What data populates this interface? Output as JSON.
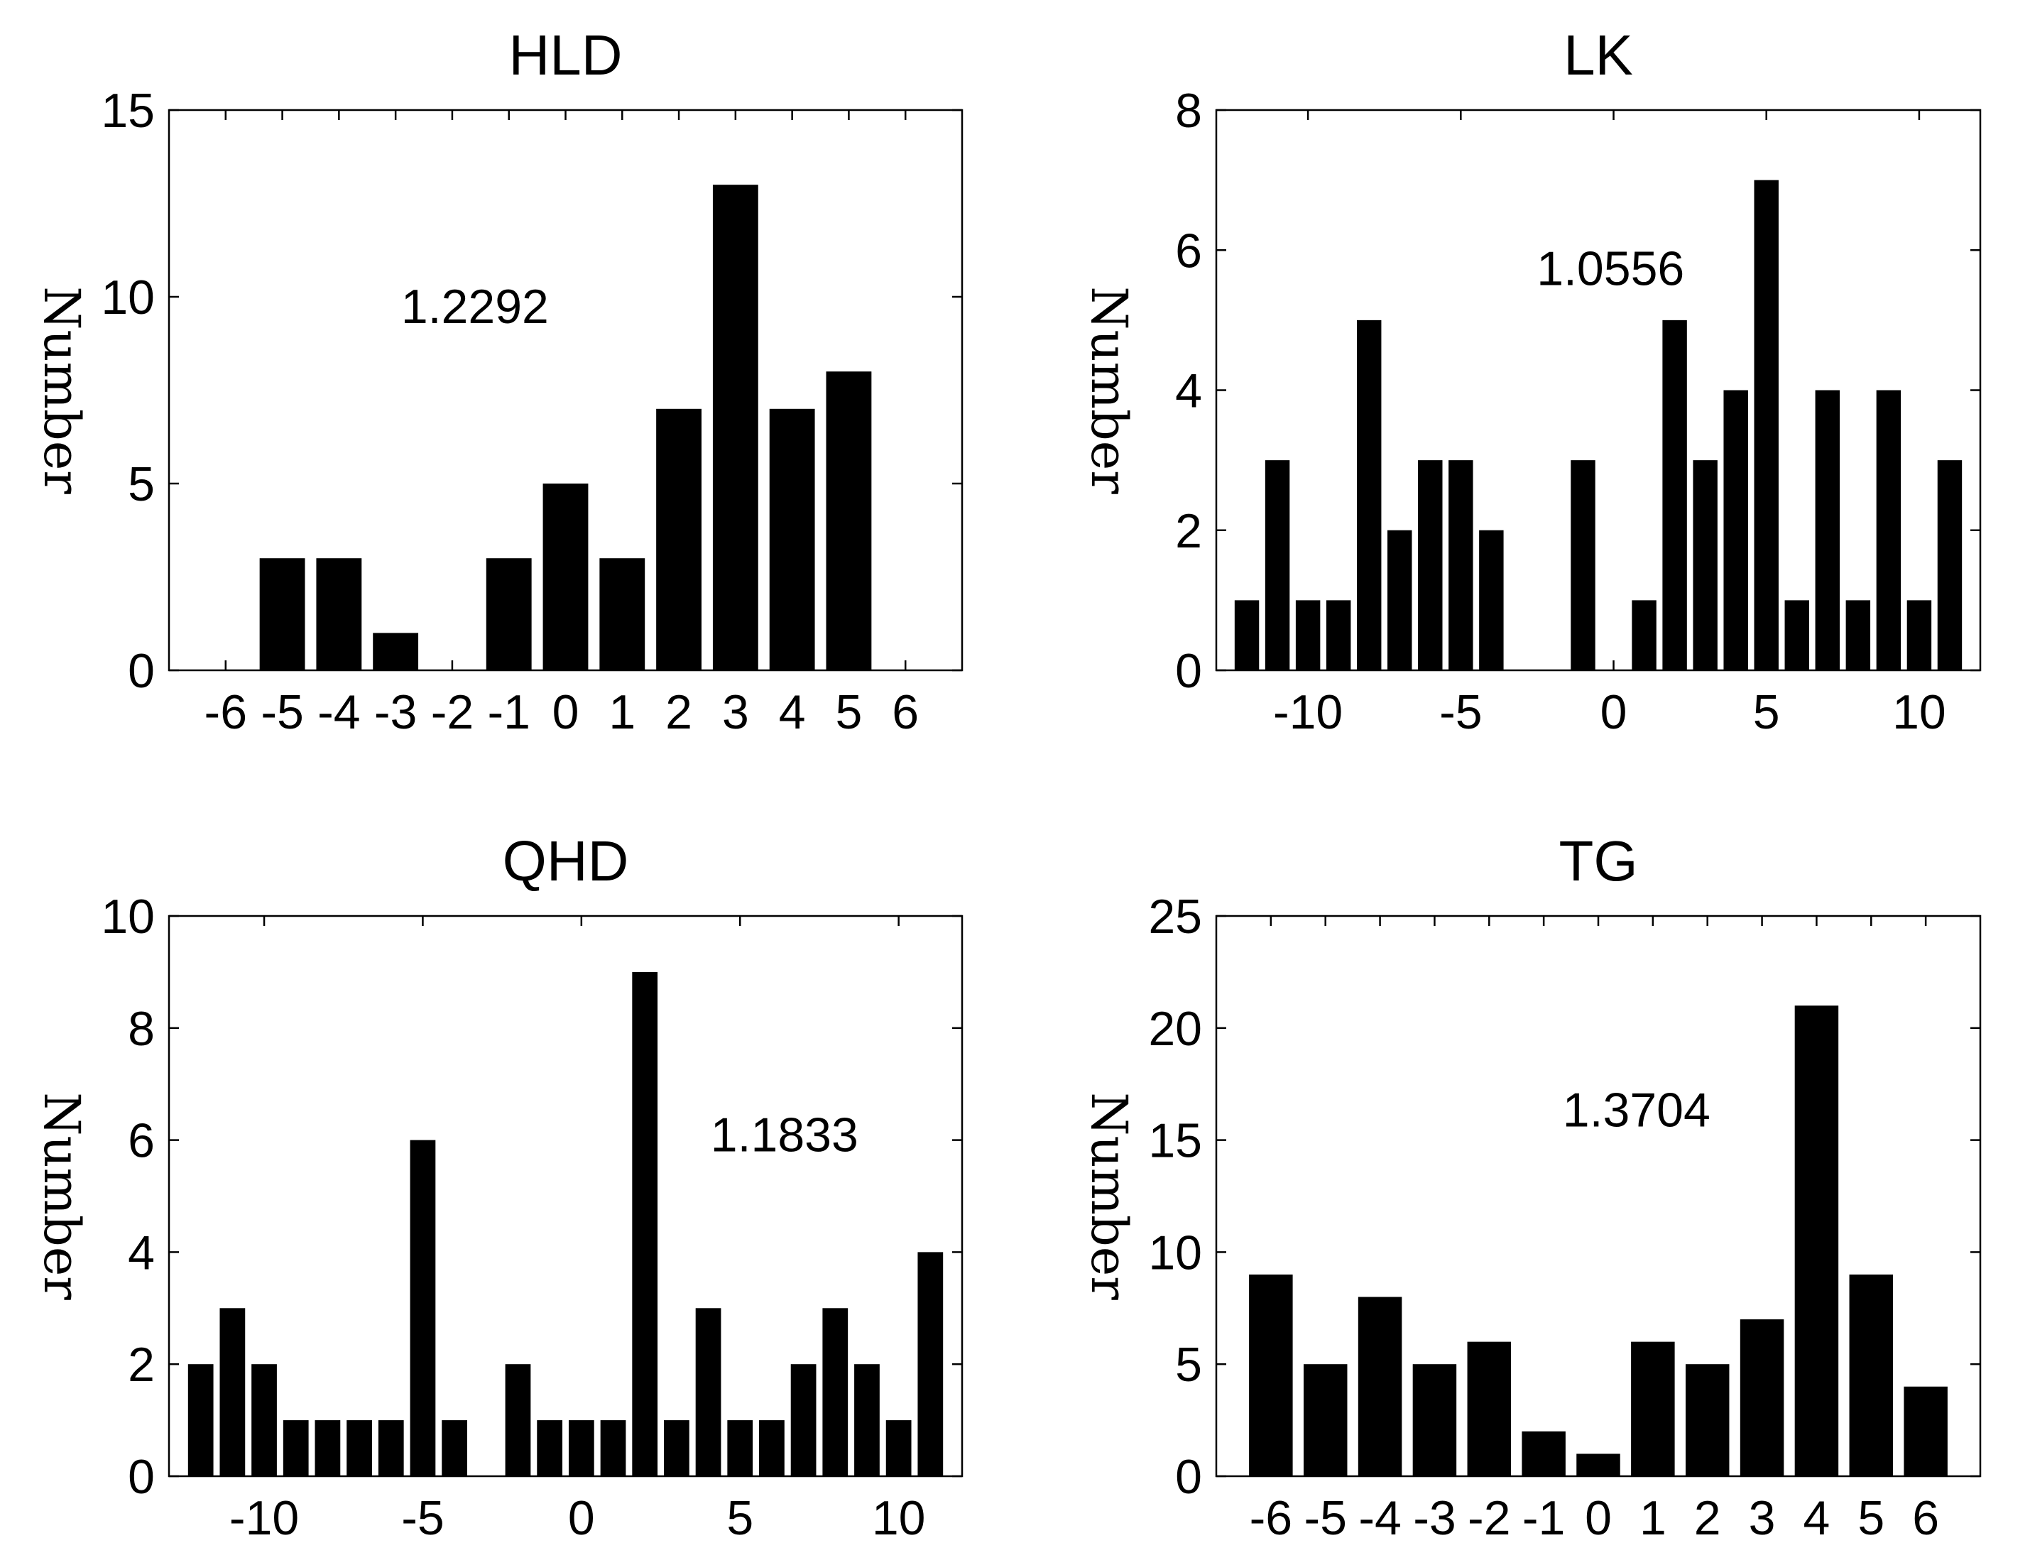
{
  "chart_data": [
    {
      "type": "bar",
      "title": "HLD",
      "ylabel": "Number",
      "xlabel": "",
      "x": [
        -6,
        -5,
        -4,
        -3,
        -2,
        -1,
        0,
        1,
        2,
        3,
        4,
        5,
        6
      ],
      "values": [
        0,
        3,
        3,
        1,
        0,
        3,
        5,
        3,
        7,
        13,
        7,
        8,
        0
      ],
      "xlim": [
        -7,
        7
      ],
      "ylim": [
        0,
        15
      ],
      "xticks": [
        -6,
        -5,
        -4,
        -3,
        -2,
        -1,
        0,
        1,
        2,
        3,
        4,
        5,
        6
      ],
      "xtick_labels": [
        "-6",
        "-5",
        "-4",
        "-3",
        "-2",
        "-1",
        "0",
        "1",
        "2",
        "3",
        "4",
        "5",
        "6"
      ],
      "yticks": [
        0,
        5,
        10,
        15
      ],
      "ytick_labels": [
        "0",
        "5",
        "10",
        "15"
      ],
      "bar_width": 0.8,
      "annotation": {
        "text": "1.2292",
        "x": -1.6,
        "y": 9.3
      },
      "grid": false,
      "color": "#000000"
    },
    {
      "type": "bar",
      "title": "LK",
      "ylabel": "Number",
      "xlabel": "",
      "x": [
        -12,
        -11,
        -10,
        -9,
        -8,
        -7,
        -6,
        -5,
        -4,
        -3,
        -2,
        -1,
        0,
        1,
        2,
        3,
        4,
        5,
        6,
        7,
        8,
        9,
        10,
        11
      ],
      "values": [
        1,
        3,
        1,
        1,
        5,
        2,
        3,
        3,
        2,
        0,
        0,
        3,
        0,
        1,
        5,
        3,
        4,
        7,
        1,
        4,
        1,
        4,
        1,
        3
      ],
      "xlim": [
        -13,
        12
      ],
      "ylim": [
        0,
        8
      ],
      "xticks": [
        -10,
        -5,
        0,
        5,
        10
      ],
      "xtick_labels": [
        "-10",
        "-5",
        "0",
        "5",
        "10"
      ],
      "yticks": [
        0,
        2,
        4,
        6,
        8
      ],
      "ytick_labels": [
        "0",
        "2",
        "4",
        "6",
        "8"
      ],
      "bar_width": 0.8,
      "annotation": {
        "text": "1.0556",
        "x": -0.1,
        "y": 5.5
      },
      "grid": false,
      "color": "#000000"
    },
    {
      "type": "bar",
      "title": "QHD",
      "ylabel": "Number",
      "xlabel": "",
      "x": [
        -12,
        -11,
        -10,
        -9,
        -8,
        -7,
        -6,
        -5,
        -4,
        -3,
        -2,
        -1,
        0,
        1,
        2,
        3,
        4,
        5,
        6,
        7,
        8,
        9,
        10,
        11
      ],
      "values": [
        2,
        3,
        2,
        1,
        1,
        1,
        1,
        6,
        1,
        0,
        2,
        1,
        1,
        1,
        9,
        1,
        3,
        1,
        1,
        2,
        3,
        2,
        1,
        4
      ],
      "xlim": [
        -13,
        12
      ],
      "ylim": [
        0,
        10
      ],
      "xticks": [
        -10,
        -5,
        0,
        5,
        10
      ],
      "xtick_labels": [
        "-10",
        "-5",
        "0",
        "5",
        "10"
      ],
      "yticks": [
        0,
        2,
        4,
        6,
        8,
        10
      ],
      "ytick_labels": [
        "0",
        "2",
        "4",
        "6",
        "8",
        "10"
      ],
      "bar_width": 0.8,
      "annotation": {
        "text": "1.1833",
        "x": 6.4,
        "y": 5.8
      },
      "grid": false,
      "color": "#000000"
    },
    {
      "type": "bar",
      "title": "TG",
      "ylabel": "Number",
      "xlabel": "",
      "x": [
        -6,
        -5,
        -4,
        -3,
        -2,
        -1,
        0,
        1,
        2,
        3,
        4,
        5,
        6
      ],
      "values": [
        9,
        5,
        8,
        5,
        6,
        2,
        1,
        6,
        5,
        7,
        21,
        9,
        4
      ],
      "xlim": [
        -7,
        7
      ],
      "ylim": [
        0,
        25
      ],
      "xticks": [
        -6,
        -5,
        -4,
        -3,
        -2,
        -1,
        0,
        1,
        2,
        3,
        4,
        5,
        6
      ],
      "xtick_labels": [
        "-6",
        "-5",
        "-4",
        "-3",
        "-2",
        "-1",
        "0",
        "1",
        "2",
        "3",
        "4",
        "5",
        "6"
      ],
      "yticks": [
        0,
        5,
        10,
        15,
        20,
        25
      ],
      "ytick_labels": [
        "0",
        "5",
        "10",
        "15",
        "20",
        "25"
      ],
      "bar_width": 0.8,
      "annotation": {
        "text": "1.3704",
        "x": 0.7,
        "y": 15.6
      },
      "grid": false,
      "color": "#000000"
    }
  ]
}
